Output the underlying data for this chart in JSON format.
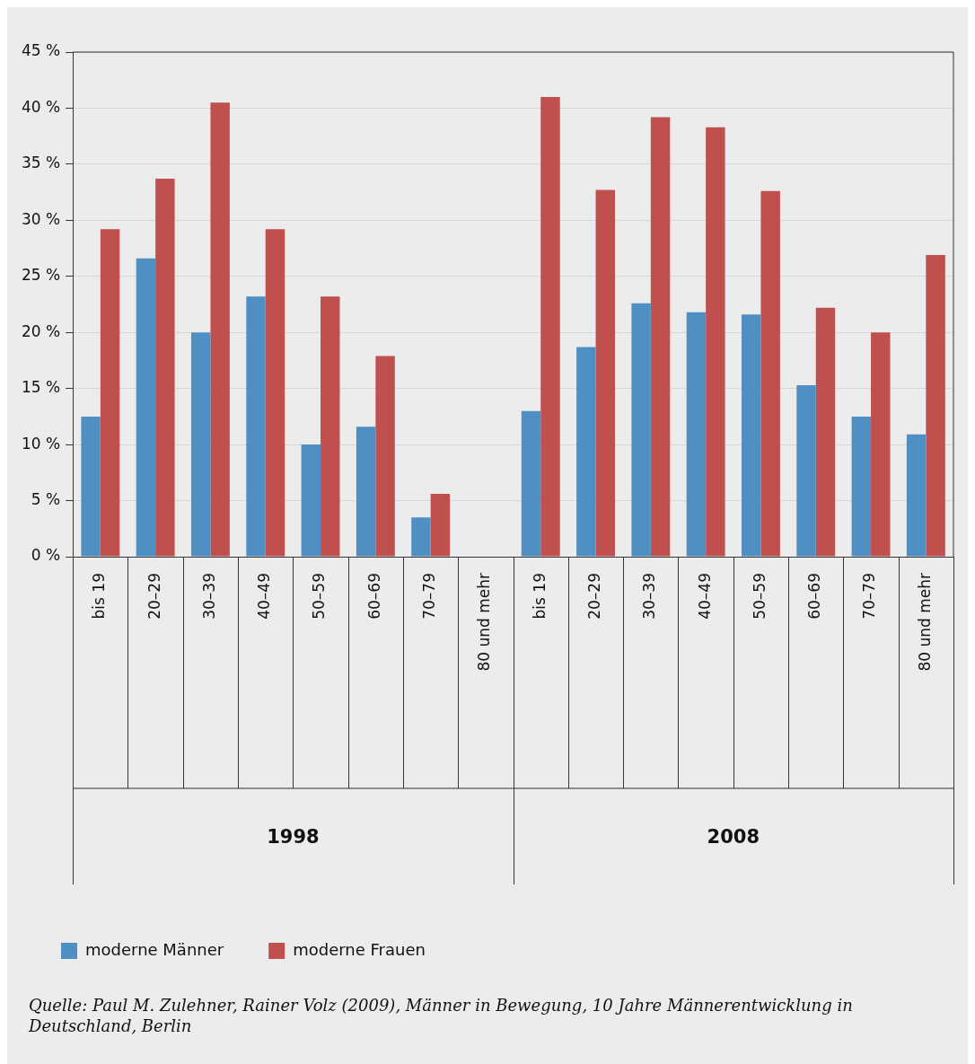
{
  "chart_data": {
    "type": "bar",
    "categories": [
      "bis 19",
      "20–29",
      "30–39",
      "40–49",
      "50–59",
      "60–69",
      "70–79",
      "80 und mehr",
      "bis 19",
      "20–29",
      "30–39",
      "40–49",
      "50–59",
      "60–69",
      "70–79",
      "80 und mehr"
    ],
    "series": [
      {
        "name": "moderne Männer",
        "color": "#4f8fc4",
        "values": [
          12.5,
          26.6,
          20.0,
          23.2,
          10.0,
          11.6,
          3.5,
          null,
          13.0,
          18.7,
          22.6,
          21.8,
          21.6,
          15.3,
          12.5,
          10.9
        ]
      },
      {
        "name": "moderne Frauen",
        "color": "#c0504d",
        "values": [
          29.2,
          33.7,
          40.5,
          29.2,
          23.2,
          17.9,
          5.6,
          null,
          41.0,
          32.7,
          39.2,
          38.3,
          32.6,
          22.2,
          20.0,
          26.9
        ]
      }
    ],
    "ylim": [
      0,
      45
    ],
    "yticks": [
      {
        "value": 0,
        "label": "0 %"
      },
      {
        "value": 5,
        "label": "5 %"
      },
      {
        "value": 10,
        "label": "10 %"
      },
      {
        "value": 15,
        "label": "15 %"
      },
      {
        "value": 20,
        "label": "20 %"
      },
      {
        "value": 25,
        "label": "25 %"
      },
      {
        "value": 30,
        "label": "30 %"
      },
      {
        "value": 35,
        "label": "35 %"
      },
      {
        "value": 40,
        "label": "40 %"
      },
      {
        "value": 45,
        "label": "45 %"
      }
    ],
    "grid": "y",
    "legend": "bottom left",
    "annotations": [
      "1998",
      "2008",
      "Quelle: Paul M. Zulehner, Rainer Volz (2009), Männer in Bewegung, 10 Jahre Männerentwicklung in Deutschland, Berlin"
    ]
  }
}
